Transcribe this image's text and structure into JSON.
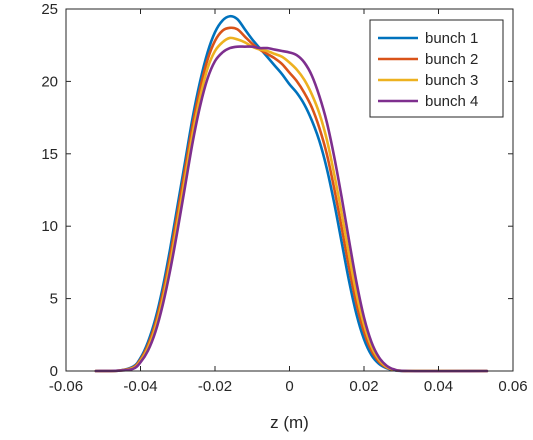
{
  "chart_data": {
    "type": "line",
    "title": "",
    "xlabel": "z  (m)",
    "ylabel": "",
    "xlim": [
      -0.06,
      0.06
    ],
    "ylim": [
      0,
      25
    ],
    "xticks": [
      -0.06,
      -0.04,
      -0.02,
      0,
      0.02,
      0.04,
      0.06
    ],
    "xtick_labels": [
      "-0.06",
      "-0.04",
      "-0.02",
      "0",
      "0.02",
      "0.04",
      "0.06"
    ],
    "yticks": [
      0,
      5,
      10,
      15,
      20,
      25
    ],
    "ytick_labels": [
      "0",
      "5",
      "10",
      "15",
      "20",
      "25"
    ],
    "grid": false,
    "legend_position": "top-right",
    "series": [
      {
        "name": "bunch 1",
        "color": "#0072BD",
        "points": [
          [
            -0.052,
            0
          ],
          [
            -0.046,
            0.02
          ],
          [
            -0.042,
            0.3
          ],
          [
            -0.04,
            0.9
          ],
          [
            -0.038,
            2.0
          ],
          [
            -0.036,
            3.6
          ],
          [
            -0.034,
            5.8
          ],
          [
            -0.032,
            8.5
          ],
          [
            -0.03,
            11.5
          ],
          [
            -0.028,
            14.5
          ],
          [
            -0.026,
            17.5
          ],
          [
            -0.024,
            20.0
          ],
          [
            -0.022,
            22.0
          ],
          [
            -0.02,
            23.4
          ],
          [
            -0.018,
            24.2
          ],
          [
            -0.016,
            24.5
          ],
          [
            -0.014,
            24.3
          ],
          [
            -0.012,
            23.6
          ],
          [
            -0.01,
            22.9
          ],
          [
            -0.008,
            22.3
          ],
          [
            -0.006,
            21.7
          ],
          [
            -0.004,
            21.1
          ],
          [
            -0.002,
            20.5
          ],
          [
            0.0,
            19.8
          ],
          [
            0.002,
            19.2
          ],
          [
            0.004,
            18.4
          ],
          [
            0.006,
            17.3
          ],
          [
            0.008,
            15.9
          ],
          [
            0.01,
            14.0
          ],
          [
            0.012,
            11.6
          ],
          [
            0.014,
            8.9
          ],
          [
            0.016,
            6.2
          ],
          [
            0.018,
            3.9
          ],
          [
            0.02,
            2.2
          ],
          [
            0.022,
            1.1
          ],
          [
            0.024,
            0.5
          ],
          [
            0.026,
            0.2
          ],
          [
            0.028,
            0.06
          ],
          [
            0.032,
            0
          ],
          [
            0.053,
            0
          ]
        ]
      },
      {
        "name": "bunch 2",
        "color": "#D95319",
        "points": [
          [
            -0.052,
            0
          ],
          [
            -0.046,
            0.02
          ],
          [
            -0.042,
            0.25
          ],
          [
            -0.04,
            0.8
          ],
          [
            -0.038,
            1.8
          ],
          [
            -0.036,
            3.3
          ],
          [
            -0.034,
            5.4
          ],
          [
            -0.032,
            8.0
          ],
          [
            -0.03,
            11.0
          ],
          [
            -0.028,
            14.0
          ],
          [
            -0.026,
            17.0
          ],
          [
            -0.024,
            19.5
          ],
          [
            -0.022,
            21.5
          ],
          [
            -0.02,
            22.8
          ],
          [
            -0.018,
            23.5
          ],
          [
            -0.016,
            23.7
          ],
          [
            -0.014,
            23.6
          ],
          [
            -0.012,
            23.1
          ],
          [
            -0.01,
            22.6
          ],
          [
            -0.008,
            22.2
          ],
          [
            -0.006,
            21.9
          ],
          [
            -0.004,
            21.6
          ],
          [
            -0.002,
            21.2
          ],
          [
            0.0,
            20.6
          ],
          [
            0.002,
            20.0
          ],
          [
            0.004,
            19.2
          ],
          [
            0.006,
            18.2
          ],
          [
            0.008,
            16.8
          ],
          [
            0.01,
            15.0
          ],
          [
            0.012,
            12.6
          ],
          [
            0.014,
            9.9
          ],
          [
            0.016,
            7.1
          ],
          [
            0.018,
            4.6
          ],
          [
            0.02,
            2.7
          ],
          [
            0.022,
            1.4
          ],
          [
            0.024,
            0.65
          ],
          [
            0.026,
            0.25
          ],
          [
            0.028,
            0.08
          ],
          [
            0.032,
            0
          ],
          [
            0.053,
            0
          ]
        ]
      },
      {
        "name": "bunch 3",
        "color": "#EDB120",
        "points": [
          [
            -0.052,
            0
          ],
          [
            -0.046,
            0.02
          ],
          [
            -0.042,
            0.2
          ],
          [
            -0.04,
            0.7
          ],
          [
            -0.038,
            1.6
          ],
          [
            -0.036,
            3.0
          ],
          [
            -0.034,
            5.0
          ],
          [
            -0.032,
            7.5
          ],
          [
            -0.03,
            10.4
          ],
          [
            -0.028,
            13.4
          ],
          [
            -0.026,
            16.4
          ],
          [
            -0.024,
            18.9
          ],
          [
            -0.022,
            20.9
          ],
          [
            -0.02,
            22.1
          ],
          [
            -0.018,
            22.7
          ],
          [
            -0.016,
            23.0
          ],
          [
            -0.014,
            22.9
          ],
          [
            -0.012,
            22.7
          ],
          [
            -0.01,
            22.4
          ],
          [
            -0.008,
            22.2
          ],
          [
            -0.006,
            22.1
          ],
          [
            -0.004,
            21.9
          ],
          [
            -0.002,
            21.7
          ],
          [
            0.0,
            21.3
          ],
          [
            0.002,
            20.8
          ],
          [
            0.004,
            20.1
          ],
          [
            0.006,
            19.1
          ],
          [
            0.008,
            17.8
          ],
          [
            0.01,
            16.0
          ],
          [
            0.012,
            13.6
          ],
          [
            0.014,
            10.9
          ],
          [
            0.016,
            8.0
          ],
          [
            0.018,
            5.3
          ],
          [
            0.02,
            3.2
          ],
          [
            0.022,
            1.7
          ],
          [
            0.024,
            0.8
          ],
          [
            0.026,
            0.3
          ],
          [
            0.028,
            0.1
          ],
          [
            0.032,
            0
          ],
          [
            0.053,
            0
          ]
        ]
      },
      {
        "name": "bunch 4",
        "color": "#7E2F8E",
        "points": [
          [
            -0.052,
            0
          ],
          [
            -0.046,
            0.02
          ],
          [
            -0.042,
            0.15
          ],
          [
            -0.04,
            0.6
          ],
          [
            -0.038,
            1.4
          ],
          [
            -0.036,
            2.7
          ],
          [
            -0.034,
            4.6
          ],
          [
            -0.032,
            7.0
          ],
          [
            -0.03,
            9.8
          ],
          [
            -0.028,
            12.8
          ],
          [
            -0.026,
            15.8
          ],
          [
            -0.024,
            18.3
          ],
          [
            -0.022,
            20.2
          ],
          [
            -0.02,
            21.4
          ],
          [
            -0.018,
            22.0
          ],
          [
            -0.016,
            22.3
          ],
          [
            -0.014,
            22.4
          ],
          [
            -0.012,
            22.4
          ],
          [
            -0.01,
            22.4
          ],
          [
            -0.008,
            22.3
          ],
          [
            -0.006,
            22.3
          ],
          [
            -0.004,
            22.2
          ],
          [
            -0.002,
            22.1
          ],
          [
            0.0,
            22.0
          ],
          [
            0.002,
            21.8
          ],
          [
            0.004,
            21.3
          ],
          [
            0.006,
            20.4
          ],
          [
            0.008,
            19.0
          ],
          [
            0.01,
            17.2
          ],
          [
            0.012,
            14.8
          ],
          [
            0.014,
            12.0
          ],
          [
            0.016,
            9.0
          ],
          [
            0.018,
            6.1
          ],
          [
            0.02,
            3.7
          ],
          [
            0.022,
            2.0
          ],
          [
            0.024,
            0.95
          ],
          [
            0.026,
            0.38
          ],
          [
            0.028,
            0.12
          ],
          [
            0.032,
            0
          ],
          [
            0.053,
            0
          ]
        ]
      }
    ]
  }
}
